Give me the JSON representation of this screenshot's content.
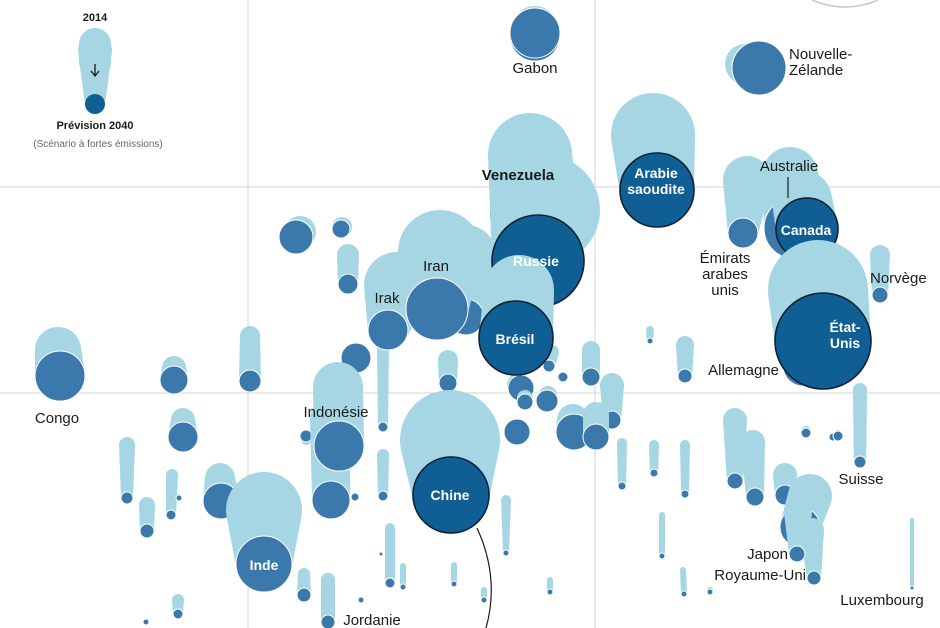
{
  "chart_data": {
    "type": "scatter",
    "title": "",
    "xlabel": "",
    "ylabel": "",
    "legend": {
      "placement": "top-left",
      "start_label": "2014",
      "end_label": "Prévision 2040",
      "note": "(Scénario à fortes émissions)"
    },
    "colors": {
      "light": "#a6d6e4",
      "dark": "#3b78ab",
      "highlight": "#0f5f94",
      "stroke": "#0d2233",
      "grid": "#d3d3d3"
    },
    "countries": [
      {
        "name": "Gabon",
        "label": "Gabon",
        "label_pos": "below",
        "highlight": false
      },
      {
        "name": "Nouvelle-Zélande",
        "label": "Nouvelle-\nZélande",
        "label_pos": "right",
        "highlight": false
      },
      {
        "name": "Venezuela",
        "label": "Venezuela",
        "label_pos": "above",
        "highlight": true,
        "bold": true
      },
      {
        "name": "Arabie saoudite",
        "label": "Arabie\nsaoudite",
        "label_pos": "inside",
        "highlight": true
      },
      {
        "name": "Australie",
        "label": "Australie",
        "label_pos": "above",
        "highlight": false
      },
      {
        "name": "Canada",
        "label": "Canada",
        "label_pos": "inside",
        "highlight": true
      },
      {
        "name": "Iran",
        "label": "Iran",
        "label_pos": "above",
        "highlight": false
      },
      {
        "name": "Russie",
        "label": "Russie",
        "label_pos": "inside",
        "highlight": true
      },
      {
        "name": "Émirats arabes unis",
        "label": "Émirats\narabes\nunis",
        "label_pos": "below",
        "highlight": false
      },
      {
        "name": "Norvège",
        "label": "Norvège",
        "label_pos": "right",
        "highlight": false
      },
      {
        "name": "Irak",
        "label": "Irak",
        "label_pos": "above",
        "highlight": false
      },
      {
        "name": "Brésil",
        "label": "Brésil",
        "label_pos": "inside",
        "highlight": true
      },
      {
        "name": "États-Unis",
        "label": "État-\nUnis",
        "label_pos": "inside",
        "highlight": true
      },
      {
        "name": "Allemagne",
        "label": "Allemagne",
        "label_pos": "left",
        "highlight": false
      },
      {
        "name": "Congo",
        "label": "Congo",
        "label_pos": "below",
        "highlight": false
      },
      {
        "name": "Indonésie",
        "label": "Indonésie",
        "label_pos": "above",
        "highlight": false
      },
      {
        "name": "Suisse",
        "label": "Suisse",
        "label_pos": "below",
        "highlight": false
      },
      {
        "name": "Chine",
        "label": "Chine",
        "label_pos": "inside",
        "highlight": true
      },
      {
        "name": "Inde",
        "label": "Inde",
        "label_pos": "inside",
        "highlight": false
      },
      {
        "name": "Japon",
        "label": "Japon",
        "label_pos": "left",
        "highlight": false
      },
      {
        "name": "Royaume-Uni",
        "label": "Royaume-Uni",
        "label_pos": "left",
        "highlight": false
      },
      {
        "name": "Luxembourg",
        "label": "Luxembourg",
        "label_pos": "below",
        "highlight": false
      },
      {
        "name": "Jordanie",
        "label": "Jordanie",
        "label_pos": "below",
        "highlight": false
      }
    ]
  }
}
